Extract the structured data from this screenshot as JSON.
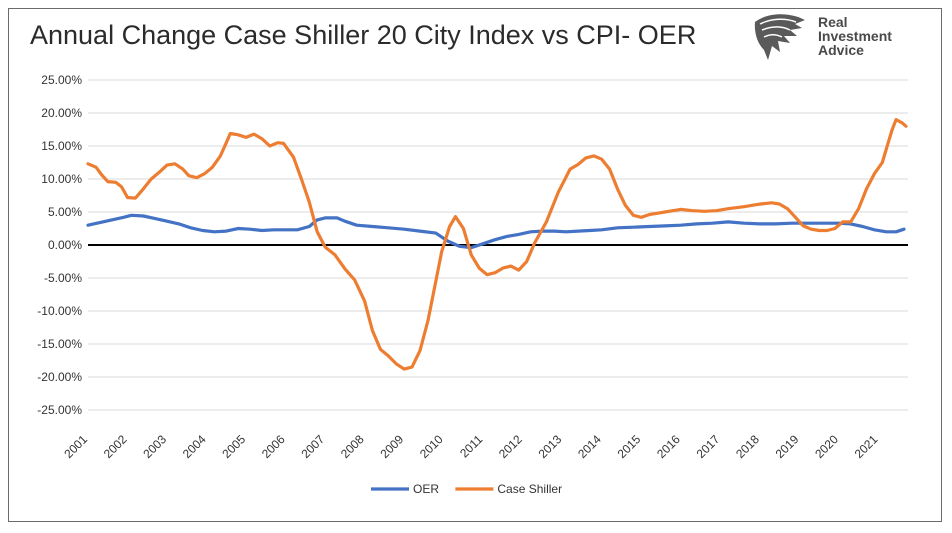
{
  "header": {
    "title": "Annual Change Case Shiller 20 City Index vs CPI- OER"
  },
  "logo": {
    "name": "eagle-head",
    "line1": "Real",
    "line2": "Investment",
    "line3": "Advice"
  },
  "colors": {
    "oer": "#4472C4",
    "case_shiller": "#ED7D31",
    "zero_line": "#000000",
    "grid": "#d9d9d9"
  },
  "chart_data": {
    "type": "line",
    "title": "Annual Change Case Shiller 20 City Index vs CPI- OER",
    "xlabel": "",
    "ylabel": "",
    "xlim": [
      2001.0,
      2021.75
    ],
    "ylim": [
      -25,
      25
    ],
    "grid": true,
    "legend_position": "bottom",
    "x_ticks": [
      "2001",
      "2002",
      "2003",
      "2004",
      "2005",
      "2006",
      "2007",
      "2008",
      "2009",
      "2010",
      "2011",
      "2012",
      "2013",
      "2014",
      "2015",
      "2016",
      "2017",
      "2018",
      "2019",
      "2020",
      "2021"
    ],
    "y_ticks": [
      "25.00%",
      "20.00%",
      "15.00%",
      "10.00%",
      "5.00%",
      "0.00%",
      "-5.00%",
      "-10.00%",
      "-15.00%",
      "-20.00%",
      "-25.00%"
    ],
    "series": [
      {
        "name": "OER",
        "points": [
          [
            2001.0,
            3.0
          ],
          [
            2001.3,
            3.4
          ],
          [
            2001.6,
            3.8
          ],
          [
            2001.9,
            4.2
          ],
          [
            2002.1,
            4.5
          ],
          [
            2002.4,
            4.4
          ],
          [
            2002.7,
            4.0
          ],
          [
            2003.0,
            3.6
          ],
          [
            2003.3,
            3.2
          ],
          [
            2003.6,
            2.6
          ],
          [
            2003.9,
            2.2
          ],
          [
            2004.2,
            2.0
          ],
          [
            2004.5,
            2.1
          ],
          [
            2004.8,
            2.5
          ],
          [
            2005.1,
            2.4
          ],
          [
            2005.4,
            2.2
          ],
          [
            2005.7,
            2.3
          ],
          [
            2006.0,
            2.3
          ],
          [
            2006.3,
            2.3
          ],
          [
            2006.6,
            2.8
          ],
          [
            2006.8,
            3.8
          ],
          [
            2007.0,
            4.1
          ],
          [
            2007.3,
            4.1
          ],
          [
            2007.5,
            3.6
          ],
          [
            2007.8,
            3.0
          ],
          [
            2008.2,
            2.8
          ],
          [
            2008.6,
            2.6
          ],
          [
            2009.0,
            2.4
          ],
          [
            2009.4,
            2.1
          ],
          [
            2009.8,
            1.8
          ],
          [
            2010.1,
            0.6
          ],
          [
            2010.4,
            -0.2
          ],
          [
            2010.7,
            -0.4
          ],
          [
            2011.0,
            0.2
          ],
          [
            2011.3,
            0.8
          ],
          [
            2011.6,
            1.3
          ],
          [
            2011.9,
            1.6
          ],
          [
            2012.2,
            2.0
          ],
          [
            2012.5,
            2.1
          ],
          [
            2012.8,
            2.1
          ],
          [
            2013.1,
            2.0
          ],
          [
            2013.4,
            2.1
          ],
          [
            2013.7,
            2.2
          ],
          [
            2014.0,
            2.3
          ],
          [
            2014.4,
            2.6
          ],
          [
            2014.8,
            2.7
          ],
          [
            2015.2,
            2.8
          ],
          [
            2015.6,
            2.9
          ],
          [
            2016.0,
            3.0
          ],
          [
            2016.4,
            3.2
          ],
          [
            2016.8,
            3.3
          ],
          [
            2017.2,
            3.5
          ],
          [
            2017.6,
            3.3
          ],
          [
            2018.0,
            3.2
          ],
          [
            2018.4,
            3.2
          ],
          [
            2018.8,
            3.3
          ],
          [
            2019.2,
            3.3
          ],
          [
            2019.6,
            3.3
          ],
          [
            2020.0,
            3.3
          ],
          [
            2020.3,
            3.2
          ],
          [
            2020.6,
            2.8
          ],
          [
            2020.9,
            2.3
          ],
          [
            2021.2,
            2.0
          ],
          [
            2021.45,
            2.0
          ],
          [
            2021.65,
            2.4
          ]
        ]
      },
      {
        "name": "Case Shiller",
        "points": [
          [
            2001.0,
            12.3
          ],
          [
            2001.2,
            11.8
          ],
          [
            2001.35,
            10.6
          ],
          [
            2001.5,
            9.6
          ],
          [
            2001.7,
            9.5
          ],
          [
            2001.85,
            8.8
          ],
          [
            2002.0,
            7.2
          ],
          [
            2002.2,
            7.1
          ],
          [
            2002.4,
            8.5
          ],
          [
            2002.6,
            10.0
          ],
          [
            2002.8,
            11.0
          ],
          [
            2003.0,
            12.1
          ],
          [
            2003.2,
            12.3
          ],
          [
            2003.4,
            11.5
          ],
          [
            2003.55,
            10.5
          ],
          [
            2003.75,
            10.2
          ],
          [
            2003.95,
            10.8
          ],
          [
            2004.15,
            11.8
          ],
          [
            2004.35,
            13.5
          ],
          [
            2004.5,
            15.5
          ],
          [
            2004.6,
            16.9
          ],
          [
            2004.8,
            16.7
          ],
          [
            2005.0,
            16.3
          ],
          [
            2005.2,
            16.8
          ],
          [
            2005.4,
            16.1
          ],
          [
            2005.6,
            15.0
          ],
          [
            2005.8,
            15.5
          ],
          [
            2005.95,
            15.4
          ],
          [
            2006.2,
            13.3
          ],
          [
            2006.4,
            10.0
          ],
          [
            2006.6,
            6.5
          ],
          [
            2006.8,
            2.0
          ],
          [
            2007.0,
            -0.3
          ],
          [
            2007.25,
            -1.5
          ],
          [
            2007.5,
            -3.6
          ],
          [
            2007.75,
            -5.3
          ],
          [
            2008.0,
            -8.5
          ],
          [
            2008.2,
            -13.0
          ],
          [
            2008.4,
            -15.8
          ],
          [
            2008.6,
            -16.8
          ],
          [
            2008.8,
            -18.0
          ],
          [
            2009.0,
            -18.8
          ],
          [
            2009.2,
            -18.5
          ],
          [
            2009.4,
            -16.0
          ],
          [
            2009.6,
            -11.5
          ],
          [
            2009.8,
            -5.5
          ],
          [
            2009.95,
            -1.0
          ],
          [
            2010.15,
            2.8
          ],
          [
            2010.3,
            4.3
          ],
          [
            2010.5,
            2.5
          ],
          [
            2010.7,
            -1.5
          ],
          [
            2010.9,
            -3.5
          ],
          [
            2011.1,
            -4.5
          ],
          [
            2011.3,
            -4.2
          ],
          [
            2011.5,
            -3.5
          ],
          [
            2011.7,
            -3.2
          ],
          [
            2011.9,
            -3.8
          ],
          [
            2012.1,
            -2.5
          ],
          [
            2012.3,
            0.3
          ],
          [
            2012.6,
            3.5
          ],
          [
            2012.9,
            8.0
          ],
          [
            2013.2,
            11.5
          ],
          [
            2013.4,
            12.2
          ],
          [
            2013.6,
            13.2
          ],
          [
            2013.8,
            13.5
          ],
          [
            2014.0,
            13.0
          ],
          [
            2014.2,
            11.5
          ],
          [
            2014.4,
            8.5
          ],
          [
            2014.6,
            6.0
          ],
          [
            2014.8,
            4.5
          ],
          [
            2015.0,
            4.2
          ],
          [
            2015.2,
            4.6
          ],
          [
            2015.4,
            4.8
          ],
          [
            2015.6,
            5.0
          ],
          [
            2015.8,
            5.2
          ],
          [
            2016.0,
            5.4
          ],
          [
            2016.3,
            5.2
          ],
          [
            2016.6,
            5.1
          ],
          [
            2016.9,
            5.2
          ],
          [
            2017.2,
            5.5
          ],
          [
            2017.6,
            5.8
          ],
          [
            2018.0,
            6.2
          ],
          [
            2018.3,
            6.4
          ],
          [
            2018.5,
            6.2
          ],
          [
            2018.7,
            5.5
          ],
          [
            2018.9,
            4.2
          ],
          [
            2019.1,
            2.9
          ],
          [
            2019.3,
            2.4
          ],
          [
            2019.5,
            2.2
          ],
          [
            2019.7,
            2.2
          ],
          [
            2019.9,
            2.5
          ],
          [
            2020.1,
            3.5
          ],
          [
            2020.3,
            3.5
          ],
          [
            2020.5,
            5.5
          ],
          [
            2020.7,
            8.5
          ],
          [
            2020.9,
            10.8
          ],
          [
            2021.1,
            12.5
          ],
          [
            2021.25,
            15.5
          ],
          [
            2021.35,
            17.5
          ],
          [
            2021.45,
            19.0
          ],
          [
            2021.6,
            18.5
          ],
          [
            2021.7,
            18.0
          ]
        ]
      }
    ]
  }
}
